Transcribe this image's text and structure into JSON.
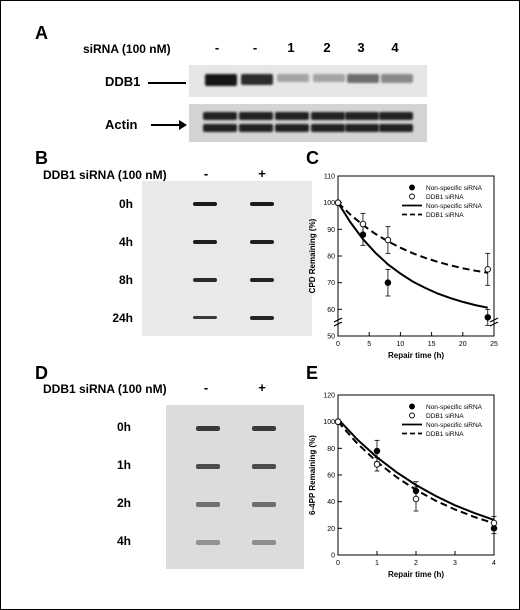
{
  "panels": {
    "A": {
      "letter": "A",
      "header": "siRNA (100 nM)",
      "lanes": [
        "-",
        "-",
        "1",
        "2",
        "3",
        "4"
      ],
      "blots": [
        "DDB1",
        "Actin"
      ],
      "ddb1_band_intensity": [
        0.95,
        0.85,
        0.3,
        0.3,
        0.55,
        0.42
      ],
      "actin_band_intensity": [
        0.9,
        0.9,
        0.9,
        0.9,
        0.9,
        0.9
      ]
    },
    "B": {
      "letter": "B",
      "header": "DDB1 siRNA (100 nM)",
      "lanes": [
        "-",
        "+"
      ],
      "rows": [
        "0h",
        "4h",
        "8h",
        "24h"
      ]
    },
    "D": {
      "letter": "D",
      "header": "DDB1 siRNA (100 nM)",
      "lanes": [
        "-",
        "+"
      ],
      "rows": [
        "0h",
        "1h",
        "2h",
        "4h"
      ]
    },
    "C": {
      "letter": "C"
    },
    "E": {
      "letter": "E"
    }
  },
  "chart_data": [
    {
      "id": "C",
      "type": "scatter",
      "xlabel": "Repair time (h)",
      "ylabel": "CPD Remaining (%)",
      "xlim": [
        0,
        25
      ],
      "ylim": [
        50,
        110
      ],
      "axis_break": true,
      "x_ticks": [
        0,
        5,
        10,
        15,
        20,
        25
      ],
      "y_ticks": [
        50,
        60,
        70,
        80,
        90,
        100,
        110
      ],
      "legend": {
        "placement": "top-right",
        "entries": [
          "Non-specific siRNA",
          "DDB1 siRNA",
          "Non-specific siRNA",
          "DDB1 siRNA"
        ]
      },
      "series": [
        {
          "name": "Non-specific siRNA",
          "marker": "filled-circle",
          "x": [
            0,
            4,
            8,
            24
          ],
          "y": [
            100,
            88,
            70,
            57
          ],
          "err": [
            0,
            4,
            5,
            3
          ]
        },
        {
          "name": "DDB1 siRNA",
          "marker": "open-circle",
          "x": [
            0,
            4,
            8,
            24
          ],
          "y": [
            100,
            92,
            86,
            75
          ],
          "err": [
            0,
            4,
            5,
            6
          ]
        }
      ],
      "fits": [
        {
          "name": "Non-specific siRNA",
          "style": "solid",
          "x": [
            0,
            2,
            4,
            6,
            8,
            10,
            12,
            14,
            16,
            18,
            20,
            22,
            24
          ],
          "y": [
            100,
            92.6,
            86.3,
            81.2,
            76.9,
            73.4,
            70.4,
            68,
            65.9,
            64.2,
            62.8,
            61.6,
            60.6
          ]
        },
        {
          "name": "DDB1 siRNA",
          "style": "dashed",
          "x": [
            0,
            2,
            4,
            6,
            8,
            10,
            12,
            14,
            16,
            18,
            20,
            22,
            24
          ],
          "y": [
            100,
            95.5,
            91.6,
            88.3,
            85.5,
            83.1,
            81,
            79.3,
            77.8,
            76.5,
            75.4,
            74.5,
            73.7
          ]
        }
      ]
    },
    {
      "id": "E",
      "type": "scatter",
      "xlabel": "Repair time (h)",
      "ylabel": "6-4PP Remaining (%)",
      "xlim": [
        0,
        4
      ],
      "ylim": [
        0,
        120
      ],
      "x_ticks": [
        0,
        1,
        2,
        3,
        4
      ],
      "y_ticks": [
        0,
        20,
        40,
        60,
        80,
        100,
        120
      ],
      "legend": {
        "placement": "top-right",
        "entries": [
          "Non-specific siRNA",
          "DDB1 siRNA",
          "Non-specific siRNA",
          "DDB1 siRNA"
        ]
      },
      "series": [
        {
          "name": "Non-specific siRNA",
          "marker": "filled-circle",
          "x": [
            0,
            1,
            2,
            4
          ],
          "y": [
            100,
            78,
            48,
            20
          ],
          "err": [
            0,
            8,
            7,
            4
          ]
        },
        {
          "name": "DDB1 siRNA",
          "marker": "open-circle",
          "x": [
            0,
            1,
            2,
            4
          ],
          "y": [
            100,
            68,
            42,
            24
          ],
          "err": [
            0,
            5,
            9,
            5
          ]
        }
      ],
      "fits": [
        {
          "name": "Non-specific siRNA",
          "style": "solid",
          "x": [
            0,
            0.5,
            1,
            1.5,
            2,
            2.5,
            3,
            3.5,
            4
          ],
          "y": [
            102,
            86.5,
            73.3,
            62.1,
            52.5,
            44.3,
            37.3,
            31.4,
            26.3
          ]
        },
        {
          "name": "DDB1 siRNA",
          "style": "dashed",
          "x": [
            0,
            0.5,
            1,
            1.5,
            2,
            2.5,
            3,
            3.5,
            4
          ],
          "y": [
            100,
            83.5,
            69.8,
            58.4,
            48.8,
            40.8,
            34.1,
            28.5,
            23.8
          ]
        }
      ]
    }
  ]
}
